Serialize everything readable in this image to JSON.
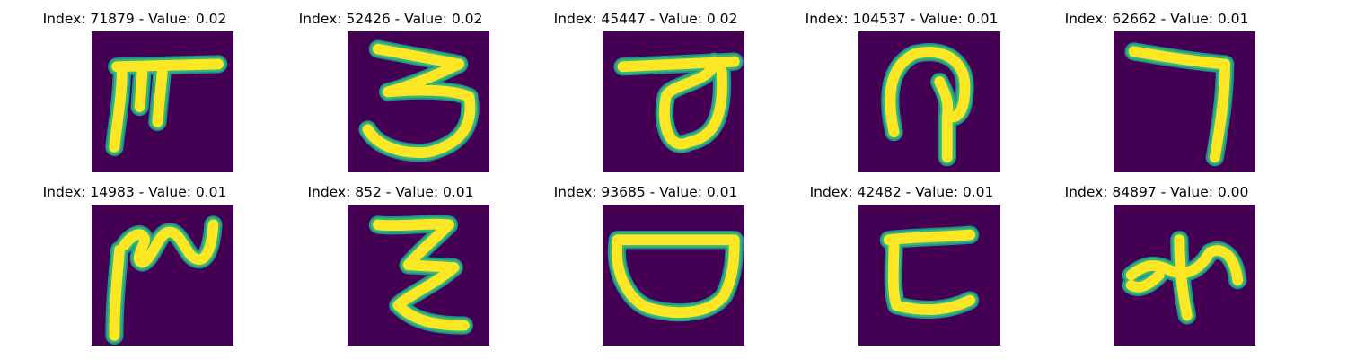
{
  "background_color": "#440154",
  "stroke_colors": {
    "core": "#fde725",
    "halo": "#21918c",
    "edge": "#35b779"
  },
  "samples": [
    {
      "title": "Index: 71879 - Value: 0.02",
      "glyph": "hooked-t"
    },
    {
      "title": "Index: 52426 - Value: 0.02",
      "glyph": "three"
    },
    {
      "title": "Index: 45447 - Value: 0.02",
      "glyph": "loop-under-bar"
    },
    {
      "title": "Index: 104537 - Value: 0.01",
      "glyph": "curl-with-stem"
    },
    {
      "title": "Index: 62662 - Value: 0.01",
      "glyph": "seven"
    },
    {
      "title": "Index: 14983 - Value: 0.01",
      "glyph": "wave-with-stem"
    },
    {
      "title": "Index: 852 - Value: 0.01",
      "glyph": "zigzag"
    },
    {
      "title": "Index: 93685 - Value: 0.01",
      "glyph": "bowl"
    },
    {
      "title": "Index: 42482 - Value: 0.01",
      "glyph": "bracket"
    },
    {
      "title": "Index: 84897 - Value: 0.00",
      "glyph": "crossed-stroke"
    }
  ]
}
